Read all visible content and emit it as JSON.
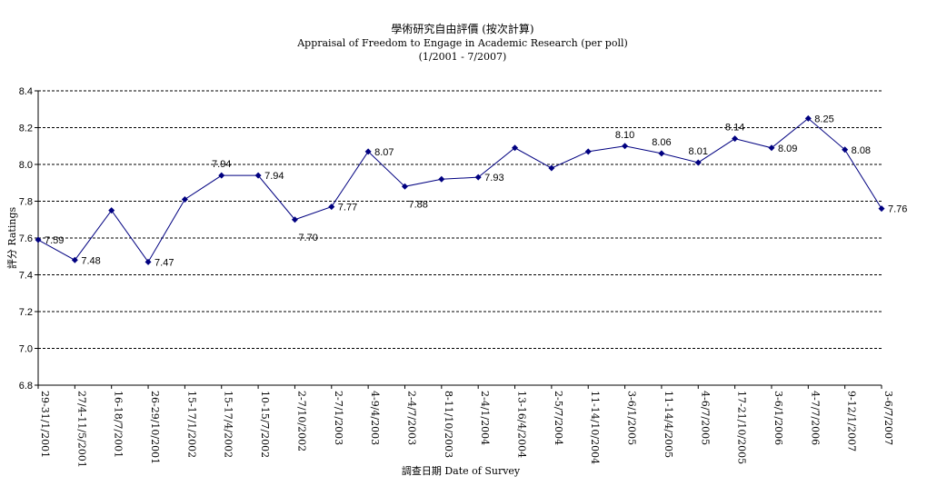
{
  "chart_data": {
    "type": "line",
    "title": "學術研究自由評價 (按次計算)",
    "subtitle": "Appraisal of Freedom to Engage in Academic Research (per poll)",
    "subtitle2": "(1/2001 - 7/2007)",
    "xlabel": "調查日期 Date of Survey",
    "ylabel": "評分 Ratings",
    "ylim": [
      6.8,
      8.4
    ],
    "yticks": [
      "6.8",
      "7.0",
      "7.2",
      "7.4",
      "7.6",
      "7.8",
      "8.0",
      "8.2",
      "8.4"
    ],
    "grid": true,
    "legend": "none",
    "categories": [
      "29-31/1/2001",
      "27/4-11/5/2001",
      "16-18/7/2001",
      "26-29/10/2001",
      "15-17/1/2002",
      "15-17/4/2002",
      "10-15/7/2002",
      "2-7/10/2002",
      "2-7/1/2003",
      "4-9/4/2003",
      "2-4/7/2003",
      "8-11/10/2003",
      "2-4/1/2004",
      "13-16/4/2004",
      "2-5/7/2004",
      "11-14/10/2004",
      "3-6/1/2005",
      "11-14/4/2005",
      "4-6/7/2005",
      "17-21/10/2005",
      "3-6/1/2006",
      "4-7/7/2006",
      "9-12/1/2007",
      "3-6/7/2007"
    ],
    "series": [
      {
        "values": [
          7.59,
          7.48,
          7.75,
          7.47,
          7.81,
          7.94,
          7.94,
          7.7,
          7.77,
          8.07,
          7.88,
          7.92,
          7.93,
          8.09,
          7.98,
          8.07,
          8.1,
          8.06,
          8.01,
          8.14,
          8.09,
          8.25,
          8.08,
          7.76
        ],
        "data_labels": [
          "7.59",
          "7.48",
          "",
          "7.47",
          "",
          "7.94",
          "7.94",
          "7.70",
          "7.77",
          "8.07",
          "7.88",
          "",
          "7.93",
          "",
          "",
          "",
          "8.10",
          "8.06",
          "8.01",
          "8.14",
          "8.09",
          "8.25",
          "8.08",
          "7.76"
        ],
        "label_pos": [
          "r",
          "r",
          "",
          "r",
          "",
          "t",
          "r",
          "b",
          "r",
          "r",
          "b",
          "",
          "r",
          "",
          "",
          "",
          "t",
          "t",
          "t",
          "t",
          "r",
          "r",
          "r",
          "r"
        ],
        "color": "#000080"
      }
    ]
  }
}
